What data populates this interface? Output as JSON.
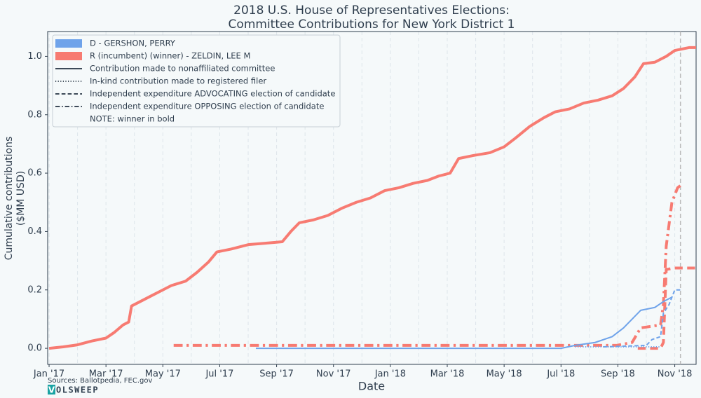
{
  "chart_data": {
    "type": "line",
    "title": [
      "2018 U.S. House of Representatives Elections:",
      "Committee Contributions for New York District 1"
    ],
    "xlabel": "Date",
    "ylabel": [
      "Cumulative contributions",
      "($MM USD)"
    ],
    "xlim": [
      -0.05,
      22.75
    ],
    "ylim": [
      -0.055,
      1.085
    ],
    "xticks": [
      {
        "value": 0,
        "label": "Jan '17"
      },
      {
        "value": 2,
        "label": "Mar '17"
      },
      {
        "value": 4,
        "label": "May '17"
      },
      {
        "value": 6,
        "label": "Jul '17"
      },
      {
        "value": 8,
        "label": "Sep '17"
      },
      {
        "value": 10,
        "label": "Nov '17"
      },
      {
        "value": 12,
        "label": "Jan '18"
      },
      {
        "value": 14,
        "label": "Mar '18"
      },
      {
        "value": 16,
        "label": "May '18"
      },
      {
        "value": 18,
        "label": "Jul '18"
      },
      {
        "value": 20,
        "label": "Sep '18"
      },
      {
        "value": 22,
        "label": "Nov '18"
      }
    ],
    "xminorticks": [
      1,
      3,
      5,
      7,
      9,
      11,
      13,
      15,
      17,
      19,
      21
    ],
    "yticks": [
      {
        "value": 0,
        "label": "0.0"
      },
      0.2,
      0.4,
      0.6,
      0.8,
      {
        "value": 1,
        "label": "1.0"
      }
    ],
    "grid": true,
    "vline": {
      "x": 22.2,
      "color": "#bbbbbb"
    },
    "series": [
      {
        "color": "#f77b72",
        "dash": "solid",
        "width": 4,
        "x": [
          0,
          0.5,
          1,
          1.5,
          2,
          2.3,
          2.6,
          2.8,
          2.9,
          3.2,
          3.6,
          4,
          4.3,
          4.8,
          5.2,
          5.6,
          5.9,
          6.4,
          7,
          7.6,
          8.2,
          8.5,
          8.8,
          9.3,
          9.8,
          10.3,
          10.8,
          11.3,
          11.8,
          12.3,
          12.8,
          13.3,
          13.7,
          14.1,
          14.4,
          14.9,
          15.5,
          16,
          16.4,
          16.9,
          17.4,
          17.8,
          18.3,
          18.8,
          19.3,
          19.8,
          20.2,
          20.6,
          20.9,
          21.3,
          21.7,
          22,
          22.5,
          22.75
        ],
        "values": [
          0,
          0.005,
          0.012,
          0.025,
          0.035,
          0.055,
          0.08,
          0.09,
          0.145,
          0.16,
          0.18,
          0.2,
          0.215,
          0.23,
          0.26,
          0.295,
          0.33,
          0.34,
          0.355,
          0.36,
          0.365,
          0.4,
          0.43,
          0.44,
          0.455,
          0.48,
          0.5,
          0.515,
          0.54,
          0.55,
          0.565,
          0.575,
          0.59,
          0.6,
          0.65,
          0.66,
          0.67,
          0.69,
          0.72,
          0.76,
          0.79,
          0.81,
          0.82,
          0.84,
          0.85,
          0.865,
          0.89,
          0.93,
          0.975,
          0.98,
          1.0,
          1.02,
          1.03,
          1.03
        ]
      },
      {
        "color": "#f77b72",
        "dash": "dashdot",
        "width": 4,
        "x": [
          4.38,
          19.95,
          20.5,
          20.8,
          21.5,
          21.6,
          21.7,
          21.9,
          22.1,
          22.3
        ],
        "values": [
          0.01,
          0.01,
          0.02,
          0.07,
          0.08,
          0.15,
          0.35,
          0.5,
          0.55,
          0.565
        ]
      },
      {
        "color": "#f77b72",
        "dash": "dashed",
        "width": 4,
        "x": [
          20.7,
          21.5,
          21.6,
          21.7,
          22,
          22.75
        ],
        "values": [
          0,
          0,
          0.02,
          0.27,
          0.275,
          0.275
        ]
      },
      {
        "color": "#6fa3ea",
        "dash": "solid",
        "width": 2,
        "x": [
          7.27,
          18,
          18.5,
          19.2,
          19.8,
          20.2,
          20.5,
          20.8,
          21.3,
          21.6,
          21.9
        ],
        "values": [
          0,
          0,
          0.01,
          0.02,
          0.04,
          0.07,
          0.1,
          0.13,
          0.14,
          0.16,
          0.175
        ]
      },
      {
        "color": "#6fa3ea",
        "dash": "dotted",
        "width": 2,
        "x": [
          18.5,
          21.5
        ],
        "values": [
          0.005,
          0.005
        ]
      },
      {
        "color": "#6fa3ea",
        "dash": "dashed",
        "width": 2,
        "x": [
          19.5,
          21,
          21.2,
          21.5,
          21.6,
          21.8,
          22,
          22.2
        ],
        "values": [
          0.005,
          0.01,
          0.03,
          0.04,
          0.12,
          0.15,
          0.2,
          0.2
        ]
      }
    ],
    "legend": {
      "patches": [
        {
          "label": "D - GERSHON, PERRY",
          "color": "#6fa3ea"
        },
        {
          "label": "R (incumbent) (winner) - ZELDIN, LEE M",
          "color": "#f77b72"
        }
      ],
      "lines": [
        {
          "label": "Contribution made to nonaffiliated committee",
          "dash": "solid"
        },
        {
          "label": "In-kind contribution made to registered filer",
          "dash": "dotted"
        },
        {
          "label": "Independent expenditure ADVOCATING election of candidate",
          "dash": "dashed"
        },
        {
          "label": "Independent expenditure OPPOSING election of candidate",
          "dash": "dashdot"
        }
      ],
      "note": "NOTE: winner in bold"
    },
    "source": "Sources: Ballotpedia, FEC.gov",
    "brand": {
      "initial": "V",
      "rest": "OLSWEEP"
    }
  }
}
